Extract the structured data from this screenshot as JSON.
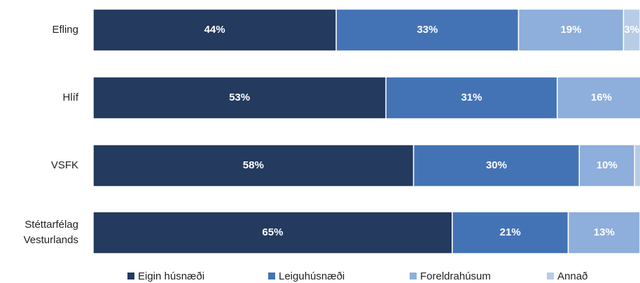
{
  "chart_data": {
    "type": "stacked-bar",
    "orientation": "horizontal",
    "categories": [
      "Efling",
      "Hlíf",
      "VSFK",
      "Stéttarfélag Vesturlands"
    ],
    "series": [
      {
        "name": "Eigin húsnæði",
        "color": "#243a5e",
        "values": [
          44,
          53,
          58,
          65
        ],
        "value_labels": [
          "44%",
          "53%",
          "58%",
          "65%"
        ]
      },
      {
        "name": "Leiguhúsnæði",
        "color": "#4473b5",
        "values": [
          33,
          31,
          30,
          21
        ],
        "value_labels": [
          "33%",
          "31%",
          "30%",
          "21%"
        ]
      },
      {
        "name": "Foreldrahúsum",
        "color": "#8eaedb",
        "values": [
          19,
          16,
          10,
          13
        ],
        "value_labels": [
          "19%",
          "16%",
          "10%",
          "13%"
        ]
      },
      {
        "name": "Annað",
        "color": "#b8cce6",
        "values": [
          3,
          1,
          2,
          1
        ],
        "value_labels": [
          "3%",
          null,
          null,
          null
        ]
      }
    ],
    "xlim": [
      0,
      100
    ],
    "legend": "bottom"
  }
}
